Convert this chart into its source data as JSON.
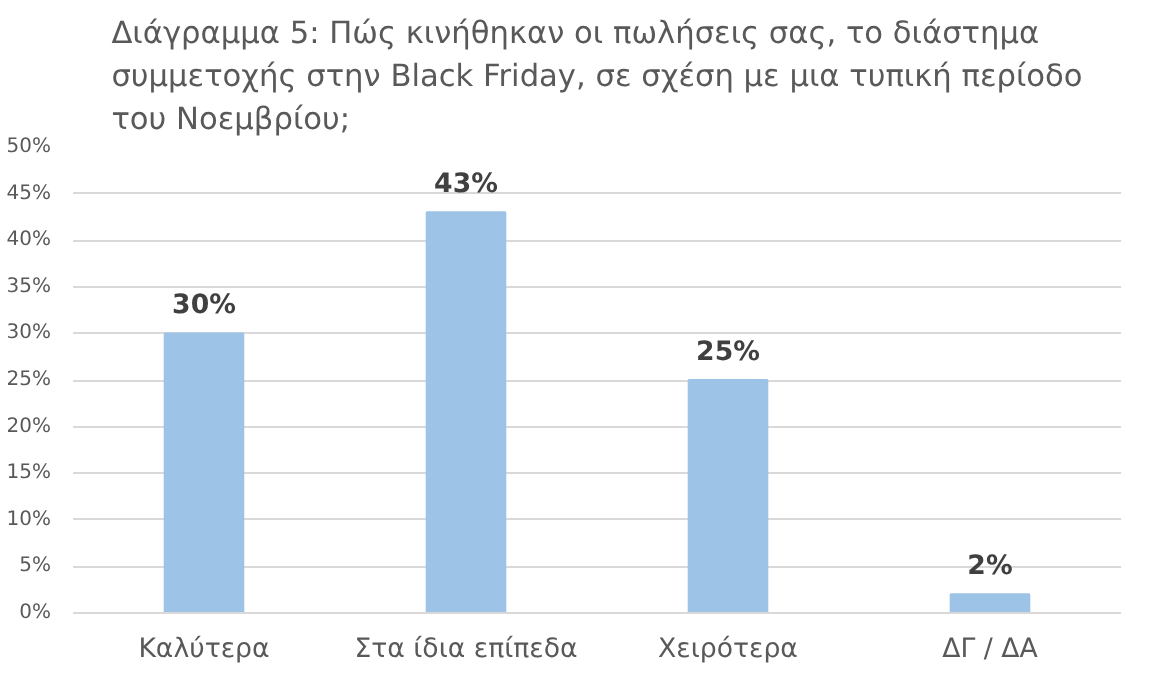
{
  "chart_data": {
    "type": "bar",
    "title": "Διάγραμμα 5: Πώς κινήθηκαν οι πωλήσεις σας, το διάστημα\nσυμμετοχής στην Black Friday, σε σχέση με μια τυπική περίοδο\nτου Νοεμβρίου;",
    "categories": [
      "Καλύτερα",
      "Στα ίδια επίπεδα",
      "Χειρότερα",
      "ΔΓ / ΔΑ"
    ],
    "values": [
      30,
      43,
      25,
      2
    ],
    "color": "#9dc3e6",
    "value_labels": [
      "30%",
      "43%",
      "25%",
      "2%"
    ],
    "ylim": [
      0,
      50
    ],
    "yticks": [
      {
        "value": 0,
        "label": "0%"
      },
      {
        "value": 5,
        "label": "5%"
      },
      {
        "value": 10,
        "label": "10%"
      },
      {
        "value": 15,
        "label": "15%"
      },
      {
        "value": 20,
        "label": "20%"
      },
      {
        "value": 25,
        "label": "25%"
      },
      {
        "value": 30,
        "label": "30%"
      },
      {
        "value": 35,
        "label": "35%"
      },
      {
        "value": 40,
        "label": "40%"
      },
      {
        "value": 45,
        "label": "45%"
      },
      {
        "value": 50,
        "label": "50%"
      }
    ],
    "grid": "y"
  }
}
